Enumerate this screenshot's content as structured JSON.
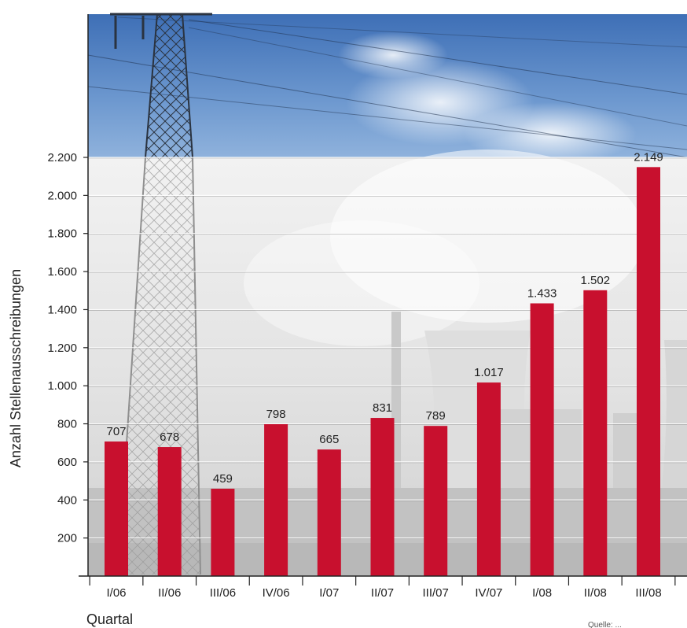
{
  "chart_data": {
    "type": "bar",
    "categories": [
      "I/06",
      "II/06",
      "III/06",
      "IV/06",
      "I/07",
      "II/07",
      "III/07",
      "IV/07",
      "I/08",
      "II/08",
      "III/08"
    ],
    "values": [
      707,
      678,
      459,
      798,
      665,
      831,
      789,
      1017,
      1433,
      1502,
      2149
    ],
    "data_labels": [
      "707",
      "678",
      "459",
      "798",
      "665",
      "831",
      "789",
      "1.017",
      "1.433",
      "1.502",
      "2.149"
    ],
    "xlabel": "Quartal",
    "ylabel": "Anzahl Stellenausschreibungen",
    "ylim": [
      0,
      2200
    ],
    "yticks": [
      200,
      400,
      600,
      800,
      1000,
      1200,
      1400,
      1600,
      1800,
      2000,
      2200
    ],
    "ytick_labels": [
      "200",
      "400",
      "600",
      "800",
      "1.000",
      "1.200",
      "1.400",
      "1.600",
      "1.800",
      "2.000",
      "2.200"
    ],
    "grid": true,
    "bar_color": "#c8102e",
    "source_note": "Quelle: ..."
  }
}
